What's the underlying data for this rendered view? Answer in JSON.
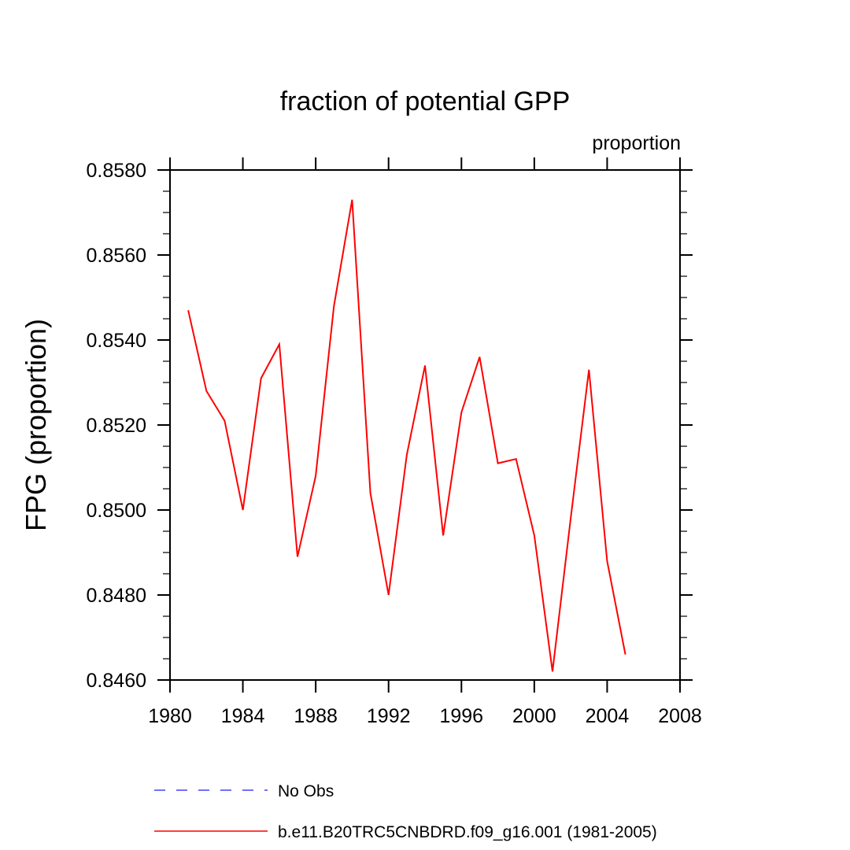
{
  "chart_data": {
    "type": "line",
    "title": "fraction of potential GPP",
    "units_label": "proportion",
    "ylabel": "FPG  (proportion)",
    "xlabel": "",
    "xlim": [
      1980,
      2008
    ],
    "ylim": [
      0.846,
      0.858
    ],
    "x_ticks": [
      1980,
      1984,
      1988,
      1992,
      1996,
      2000,
      2004,
      2008
    ],
    "x_tick_labels": [
      "1980",
      "1984",
      "1988",
      "1992",
      "1996",
      "2000",
      "2004",
      "2008"
    ],
    "y_ticks": [
      0.846,
      0.848,
      0.85,
      0.852,
      0.854,
      0.856,
      0.858
    ],
    "y_tick_labels": [
      "0.8460",
      "0.8480",
      "0.8500",
      "0.8520",
      "0.8540",
      "0.8560",
      "0.8580"
    ],
    "grid": false,
    "legend_position": "bottom",
    "series": [
      {
        "name": "No Obs",
        "color": "#4040ff",
        "dash": "dashed",
        "x": [],
        "y": []
      },
      {
        "name": "b.e11.B20TRC5CNBDRD.f09_g16.001 (1981-2005)",
        "color": "#ff0000",
        "dash": "solid",
        "x": [
          1981,
          1982,
          1983,
          1984,
          1985,
          1986,
          1987,
          1988,
          1989,
          1990,
          1991,
          1992,
          1993,
          1994,
          1995,
          1996,
          1997,
          1998,
          1999,
          2000,
          2001,
          2002,
          2003,
          2004,
          2005
        ],
        "y": [
          0.8547,
          0.8528,
          0.8521,
          0.85,
          0.8531,
          0.8539,
          0.8489,
          0.8508,
          0.8548,
          0.8573,
          0.8504,
          0.848,
          0.8513,
          0.8534,
          0.8494,
          0.8523,
          0.8536,
          0.8511,
          0.8512,
          0.8494,
          0.8462,
          0.8498,
          0.8533,
          0.8488,
          0.8466
        ]
      }
    ]
  }
}
